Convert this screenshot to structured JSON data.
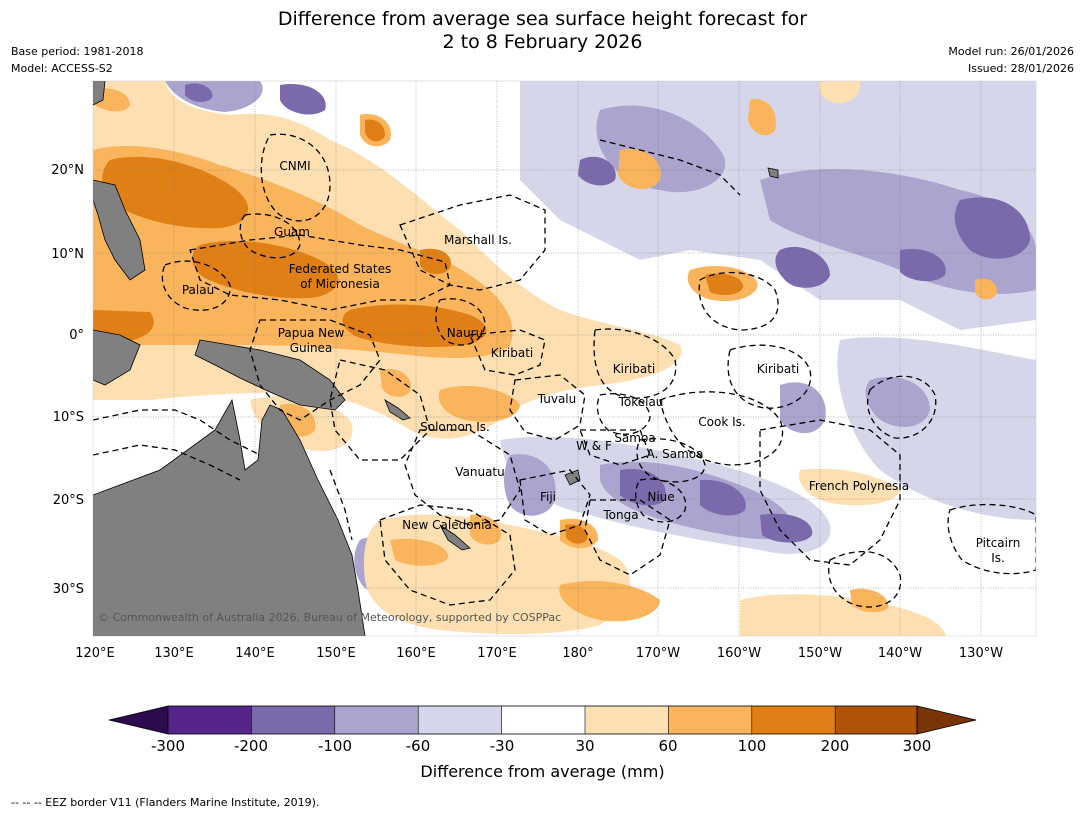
{
  "header": {
    "title_line1": "Difference from average sea surface height forecast for",
    "title_line2": "2 to 8 February 2026",
    "base_period": "Base period: 1981-2018",
    "model": "Model: ACCESS-S2",
    "model_run": "Model run: 26/01/2026",
    "issued": "Issued: 28/01/2026"
  },
  "map": {
    "lon_labels": [
      "120°E",
      "130°E",
      "140°E",
      "150°E",
      "160°E",
      "170°E",
      "180°",
      "170°W",
      "160°W",
      "150°W",
      "140°W",
      "130°W"
    ],
    "lat_labels": [
      "20°N",
      "10°N",
      "0°",
      "10°S",
      "20°S",
      "30°S"
    ],
    "copyright": "© Commonwealth of Australia 2026, Bureau of Meteorology, supported by COSPPac",
    "regions": {
      "cnmi": "CNMI",
      "guam": "Guam",
      "marshall": "Marshall Is.",
      "fsm_1": "Federated States",
      "fsm_2": "of Micronesia",
      "palau": "Palau",
      "png_1": "Papua New",
      "png_2": "Guinea",
      "nauru": "Nauru",
      "kiribati_w": "Kiribati",
      "kiribati_c": "Kiribati",
      "kiribati_e": "Kiribati",
      "tuvalu": "Tuvalu",
      "tokelau": "Tokelau",
      "cook": "Cook Is.",
      "solomon": "Solomon Is.",
      "samoa": "Samoa",
      "wf": "W & F",
      "asamoa": "A. Samoa",
      "vanuatu": "Vanuatu",
      "fiji": "Fiji",
      "niue": "Niue",
      "tonga": "Tonga",
      "newcal": "New Caledonia",
      "frpoly": "French Polynesia",
      "pitcairn_1": "Pitcairn",
      "pitcairn_2": "Is."
    }
  },
  "colorbar": {
    "tick_labels": [
      "-300",
      "-200",
      "-100",
      "-60",
      "-30",
      "30",
      "60",
      "100",
      "200",
      "300"
    ],
    "colors": [
      "#2c0b4f",
      "#56258a",
      "#7b6aab",
      "#aba4ce",
      "#d6d6ea",
      "#ffffff",
      "#fddfb2",
      "#fab45b",
      "#e07f15",
      "#b05306",
      "#7a3408"
    ],
    "title": "Difference from average (mm)"
  },
  "footer": {
    "legend_text": "--  --  -- EEZ border V11 (Flanders Marine Institute, 2019)."
  }
}
